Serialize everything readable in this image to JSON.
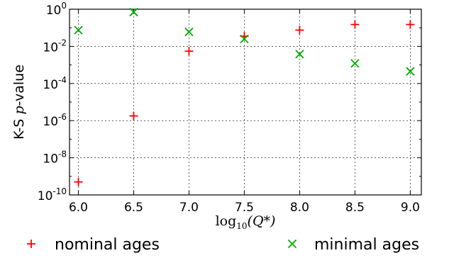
{
  "chart_data": {
    "type": "scatter",
    "xlabel": {
      "base": "log",
      "sub": "10",
      "arg": "(Q*)"
    },
    "ylabel": {
      "prefix": "K-S ",
      "italic": "p",
      "suffix": "-value"
    },
    "xlim": [
      5.92,
      9.1
    ],
    "ylim": [
      1e-10,
      1
    ],
    "yscale": "log",
    "grid": true,
    "legend_position": "bottom",
    "x_ticks": [
      "6.0",
      "6.5",
      "7.0",
      "7.5",
      "8.0",
      "8.5",
      "9.0"
    ],
    "x_tick_values": [
      6.0,
      6.5,
      7.0,
      7.5,
      8.0,
      8.5,
      9.0
    ],
    "y_ticks": [
      {
        "base": "10",
        "exp": "0",
        "value": 1
      },
      {
        "base": "10",
        "exp": "-2",
        "value": 0.01
      },
      {
        "base": "10",
        "exp": "-4",
        "value": 0.0001
      },
      {
        "base": "10",
        "exp": "-6",
        "value": 1e-06
      },
      {
        "base": "10",
        "exp": "-8",
        "value": 1e-08
      },
      {
        "base": "10",
        "exp": "-10",
        "value": 1e-10
      }
    ],
    "series": [
      {
        "name": "nominal ages",
        "marker": "plus",
        "color": "#ff0000",
        "x": [
          6.0,
          6.5,
          7.0,
          7.5,
          8.0,
          8.5,
          9.0
        ],
        "y": [
          5e-10,
          1.8e-06,
          0.0055,
          0.035,
          0.075,
          0.15,
          0.15
        ]
      },
      {
        "name": "minimal ages",
        "marker": "x",
        "color": "#00aa00",
        "x": [
          6.0,
          6.5,
          7.0,
          7.5,
          8.0,
          8.5,
          9.0
        ],
        "y": [
          0.075,
          0.7,
          0.06,
          0.025,
          0.0038,
          0.0012,
          0.00045
        ]
      }
    ]
  }
}
